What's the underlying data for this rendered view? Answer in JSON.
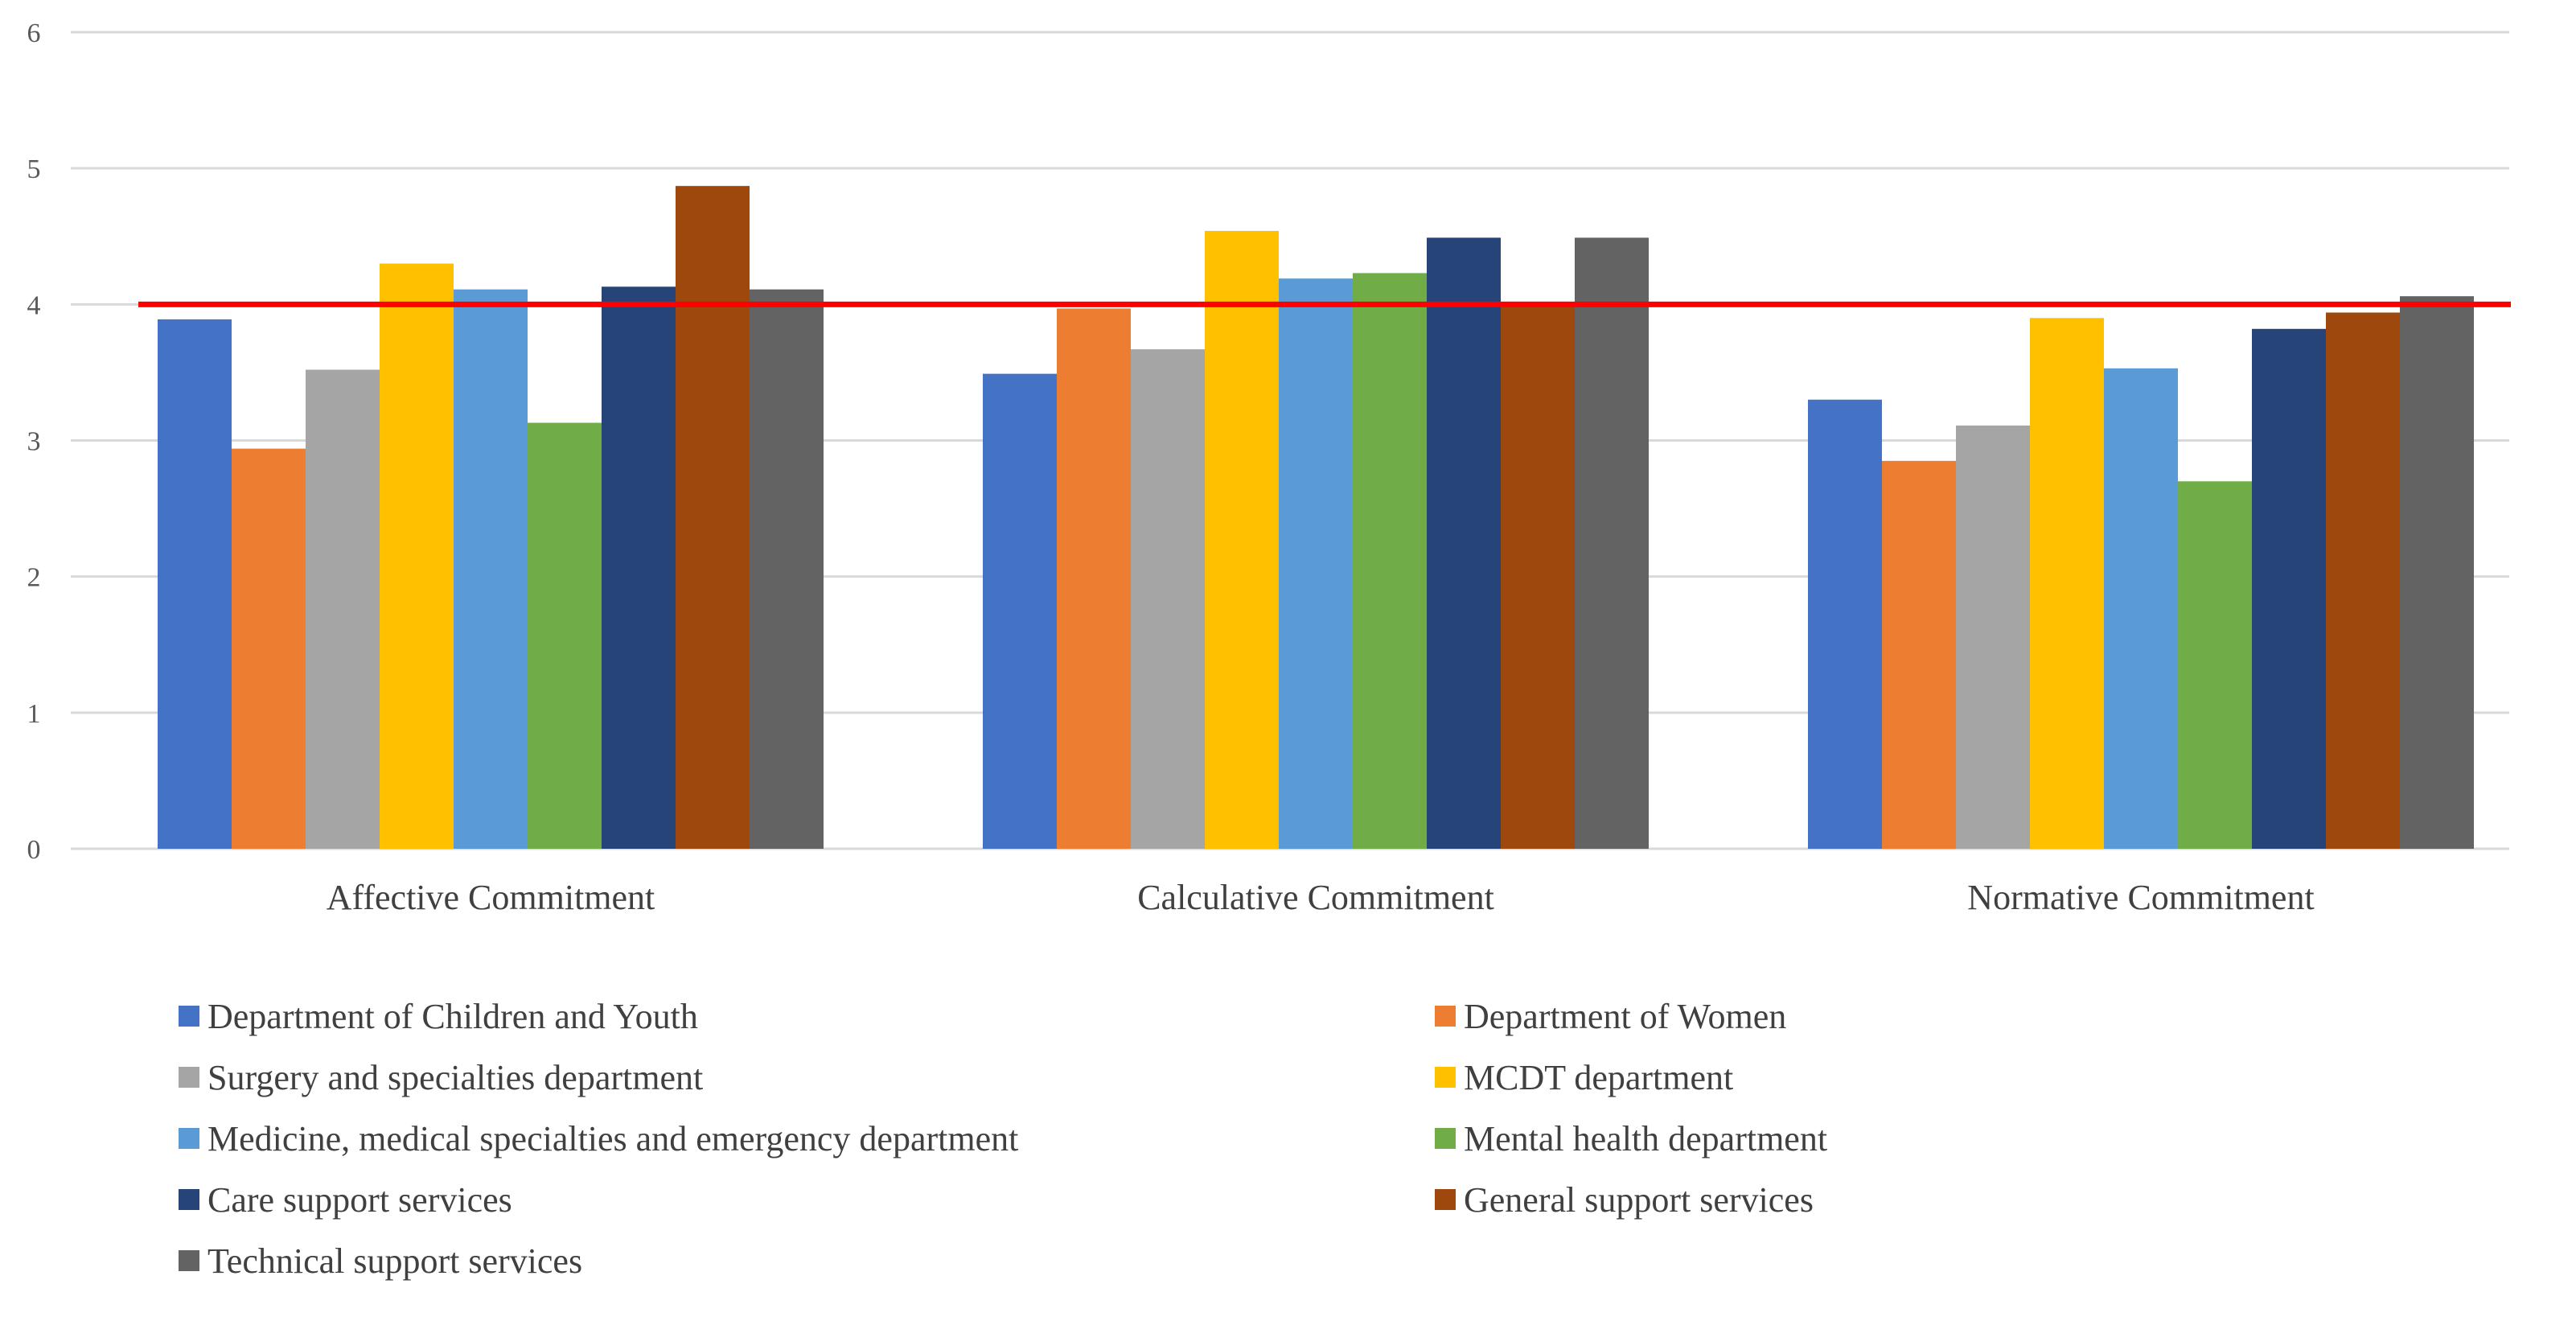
{
  "chart_data": {
    "type": "bar",
    "categories": [
      "Affective Commitment",
      "Calculative Commitment",
      "Normative Commitment"
    ],
    "series": [
      {
        "name": "Department of Children and Youth",
        "color": "#4472C4",
        "values": [
          3.89,
          3.49,
          3.3
        ]
      },
      {
        "name": "Department of Women",
        "color": "#ED7D31",
        "values": [
          2.94,
          3.97,
          2.85
        ]
      },
      {
        "name": "Surgery and specialties department",
        "color": "#A5A5A5",
        "values": [
          3.52,
          3.67,
          3.11
        ]
      },
      {
        "name": "MCDT department",
        "color": "#FFC000",
        "values": [
          4.3,
          4.54,
          3.9
        ]
      },
      {
        "name": "Medicine, medical specialties and emergency department",
        "color": "#5B9BD5",
        "values": [
          4.11,
          4.19,
          3.53
        ]
      },
      {
        "name": "Mental health department",
        "color": "#70AD47",
        "values": [
          3.13,
          4.23,
          2.7
        ]
      },
      {
        "name": "Care support services",
        "color": "#264478",
        "values": [
          4.13,
          4.49,
          3.82
        ]
      },
      {
        "name": "General support services",
        "color": "#9E480E",
        "values": [
          4.87,
          4.02,
          3.94
        ]
      },
      {
        "name": "Technical support services",
        "color": "#636363",
        "values": [
          4.11,
          4.49,
          4.06
        ]
      }
    ],
    "reference_line": {
      "value": 4,
      "color": "#FF0000"
    },
    "y_ticks": [
      "0",
      "1",
      "2",
      "3",
      "4",
      "5",
      "6"
    ],
    "ylim": [
      0,
      6
    ],
    "grid": true,
    "legend_position": "bottom",
    "title": "",
    "xlabel": "",
    "ylabel": ""
  }
}
